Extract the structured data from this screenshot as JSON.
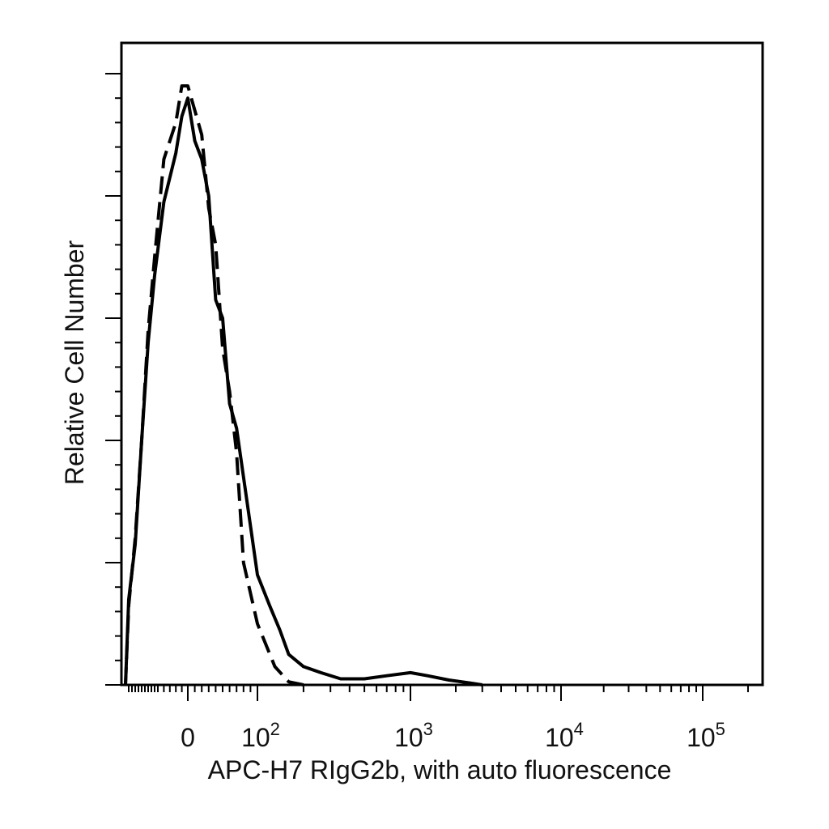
{
  "chart_data": {
    "type": "line",
    "title": "",
    "xlabel": "APC-H7 RIgG2b, with auto fluorescence",
    "ylabel": "Relative Cell Number",
    "x_scale": "biexponential",
    "xlim": [
      -150,
      250000
    ],
    "ylim": [
      0,
      100
    ],
    "grid": false,
    "legend": "none",
    "x_tick_labels": [
      {
        "value": 0,
        "base": "0",
        "exp": ""
      },
      {
        "value": 100,
        "base": "10",
        "exp": "2"
      },
      {
        "value": 1000,
        "base": "10",
        "exp": "3"
      },
      {
        "value": 10000,
        "base": "10",
        "exp": "4"
      },
      {
        "value": 100000,
        "base": "10",
        "exp": "5"
      }
    ],
    "series": [
      {
        "style": "solid",
        "color": "#000000",
        "x": [
          -150,
          -140,
          -120,
          -100,
          -80,
          -60,
          -40,
          -20,
          -10,
          0,
          10,
          20,
          30,
          40,
          50,
          60,
          70,
          80,
          90,
          100,
          120,
          140,
          160,
          200,
          260,
          350,
          500,
          700,
          1000,
          1300,
          1800,
          2500,
          3000
        ],
        "y": [
          0,
          14,
          23,
          40,
          56,
          67,
          79,
          87,
          93,
          96,
          89,
          86,
          80,
          63,
          60,
          46,
          42,
          34,
          26,
          18,
          13,
          9,
          5,
          3,
          2,
          1,
          1,
          1.5,
          2,
          1.5,
          0.8,
          0.3,
          0
        ]
      },
      {
        "style": "dashed",
        "color": "#000000",
        "x": [
          -150,
          -140,
          -120,
          -100,
          -80,
          -60,
          -40,
          -20,
          -10,
          0,
          10,
          20,
          30,
          40,
          50,
          60,
          70,
          80,
          100,
          130,
          160,
          200
        ],
        "y": [
          0,
          13,
          24,
          40,
          58,
          70,
          86,
          92,
          98,
          98,
          94,
          90,
          78,
          72,
          55,
          48,
          38,
          20,
          10,
          3,
          0.5,
          0
        ]
      }
    ]
  }
}
